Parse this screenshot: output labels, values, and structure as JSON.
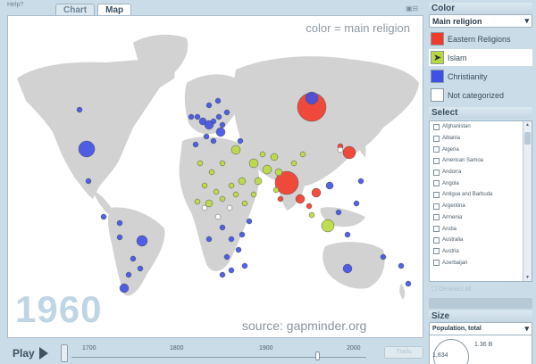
{
  "help_label": "Help?",
  "tabs": [
    {
      "label": "Chart",
      "active": false
    },
    {
      "label": "Map",
      "active": true
    }
  ],
  "map": {
    "legend_note": "color = main religion",
    "year": "1960",
    "source": "source: gapminder.org"
  },
  "playbar": {
    "play_label": "Play",
    "ticks": [
      "1700",
      "1800",
      "1900",
      "2000"
    ],
    "trails_label": "Trails"
  },
  "color_panel": {
    "title": "Color",
    "dropdown_value": "Main religion",
    "items": [
      {
        "label": "Eastern Religions",
        "color": "#f23a2a"
      },
      {
        "label": "Islam",
        "color": "#b9d93f"
      },
      {
        "label": "Christianity",
        "color": "#3f50e6"
      },
      {
        "label": "Not categorized",
        "color": "#ffffff"
      }
    ]
  },
  "select_panel": {
    "title": "Select",
    "countries": [
      "Afghanistan",
      "Albania",
      "Algeria",
      "American Samoa",
      "Andorra",
      "Angola",
      "Antigua and Barbuda",
      "Argentina",
      "Armenia",
      "Aruba",
      "Australia",
      "Austria",
      "Azerbaijan"
    ],
    "deselect_label": "Deselect all"
  },
  "size_panel": {
    "title": "Size",
    "dropdown_value": "Population, total",
    "value_label": "1.36 B",
    "min_label": "1,834"
  }
}
